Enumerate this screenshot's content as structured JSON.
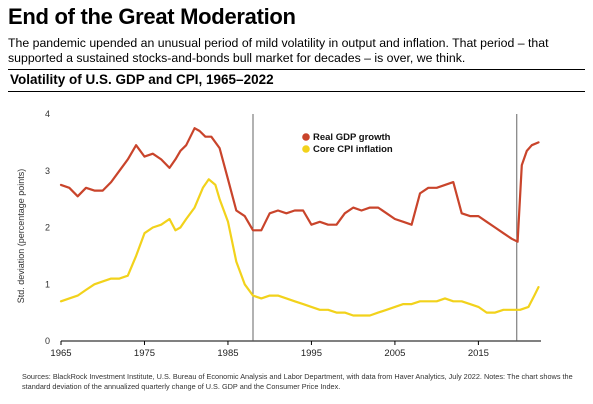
{
  "header": {
    "title": "End of the Great Moderation",
    "subtitle": "The pandemic upended an unusual period of mild volatility in output and inflation. That period – that supported a sustained stocks-and-bonds bull market for decades – is over, we think."
  },
  "footer": {
    "source": "Sources: BlackRock Investment Institute, U.S. Bureau of Economic Analysis and Labor Department, with data from Haver Analytics, July 2022. Notes: The chart shows the standard deviation of the annualized quarterly change of U.S. GDP and the Consumer Price Index."
  },
  "chart_data": {
    "type": "line",
    "title": "Volatility of U.S. GDP and CPI, 1965–2022",
    "xlabel": "",
    "ylabel": "Std. deviation (percentage points)",
    "xlim": [
      1965,
      2022.5
    ],
    "ylim": [
      0,
      4
    ],
    "x_ticks": [
      1965,
      1975,
      1985,
      1995,
      2005,
      2015
    ],
    "y_ticks": [
      0,
      1,
      2,
      3,
      4
    ],
    "grid": false,
    "legend_position": "top-right",
    "vertical_markers": [
      1988,
      2019.6
    ],
    "series": [
      {
        "name": "Real GDP growth",
        "color": "#c9442b",
        "x": [
          1965.0,
          1966.0,
          1967.0,
          1968.0,
          1969.0,
          1970.0,
          1971.0,
          1972.0,
          1973.0,
          1974.0,
          1975.0,
          1976.0,
          1977.0,
          1978.0,
          1978.7,
          1979.3,
          1980.0,
          1981.0,
          1981.6,
          1982.3,
          1983.0,
          1984.0,
          1985.0,
          1986.0,
          1987.0,
          1988.0,
          1989.0,
          1990.0,
          1991.0,
          1992.0,
          1993.0,
          1994.0,
          1995.0,
          1996.0,
          1997.0,
          1998.0,
          1999.0,
          2000.0,
          2001.0,
          2002.0,
          2003.0,
          2004.0,
          2005.0,
          2006.0,
          2007.0,
          2008.0,
          2009.0,
          2010.0,
          2011.0,
          2012.0,
          2013.0,
          2014.0,
          2015.0,
          2016.0,
          2017.0,
          2018.0,
          2019.0,
          2019.7,
          2020.2,
          2020.8,
          2021.4,
          2022.2
        ],
        "values": [
          2.75,
          2.7,
          2.55,
          2.7,
          2.65,
          2.65,
          2.8,
          3.0,
          3.2,
          3.45,
          3.25,
          3.3,
          3.2,
          3.05,
          3.2,
          3.35,
          3.45,
          3.75,
          3.7,
          3.6,
          3.6,
          3.4,
          2.85,
          2.3,
          2.2,
          1.95,
          1.95,
          2.25,
          2.3,
          2.25,
          2.3,
          2.3,
          2.05,
          2.1,
          2.05,
          2.05,
          2.25,
          2.35,
          2.3,
          2.35,
          2.35,
          2.25,
          2.15,
          2.1,
          2.05,
          2.6,
          2.7,
          2.7,
          2.75,
          2.8,
          2.25,
          2.2,
          2.2,
          2.1,
          2.0,
          1.9,
          1.8,
          1.75,
          3.1,
          3.35,
          3.45,
          3.5
        ]
      },
      {
        "name": "Core CPI inflation",
        "color": "#f2d21b",
        "x": [
          1965.0,
          1966.0,
          1967.0,
          1968.0,
          1969.0,
          1970.0,
          1971.0,
          1972.0,
          1973.0,
          1974.0,
          1975.0,
          1976.0,
          1977.0,
          1978.0,
          1978.7,
          1979.3,
          1980.0,
          1981.0,
          1982.0,
          1982.7,
          1983.5,
          1984.0,
          1985.0,
          1986.0,
          1987.0,
          1988.0,
          1989.0,
          1990.0,
          1991.0,
          1992.0,
          1993.0,
          1994.0,
          1995.0,
          1996.0,
          1997.0,
          1998.0,
          1999.0,
          2000.0,
          2001.0,
          2002.0,
          2003.0,
          2004.0,
          2005.0,
          2006.0,
          2007.0,
          2008.0,
          2009.0,
          2010.0,
          2011.0,
          2012.0,
          2013.0,
          2014.0,
          2015.0,
          2016.0,
          2017.0,
          2018.0,
          2019.0,
          2020.0,
          2021.0,
          2021.7,
          2022.2
        ],
        "values": [
          0.7,
          0.75,
          0.8,
          0.9,
          1.0,
          1.05,
          1.1,
          1.1,
          1.15,
          1.5,
          1.9,
          2.0,
          2.05,
          2.15,
          1.95,
          2.0,
          2.15,
          2.35,
          2.7,
          2.85,
          2.75,
          2.5,
          2.1,
          1.4,
          1.0,
          0.8,
          0.75,
          0.8,
          0.8,
          0.75,
          0.7,
          0.65,
          0.6,
          0.55,
          0.55,
          0.5,
          0.5,
          0.45,
          0.45,
          0.45,
          0.5,
          0.55,
          0.6,
          0.65,
          0.65,
          0.7,
          0.7,
          0.7,
          0.75,
          0.7,
          0.7,
          0.65,
          0.6,
          0.5,
          0.5,
          0.55,
          0.55,
          0.55,
          0.6,
          0.8,
          0.95
        ]
      }
    ]
  }
}
